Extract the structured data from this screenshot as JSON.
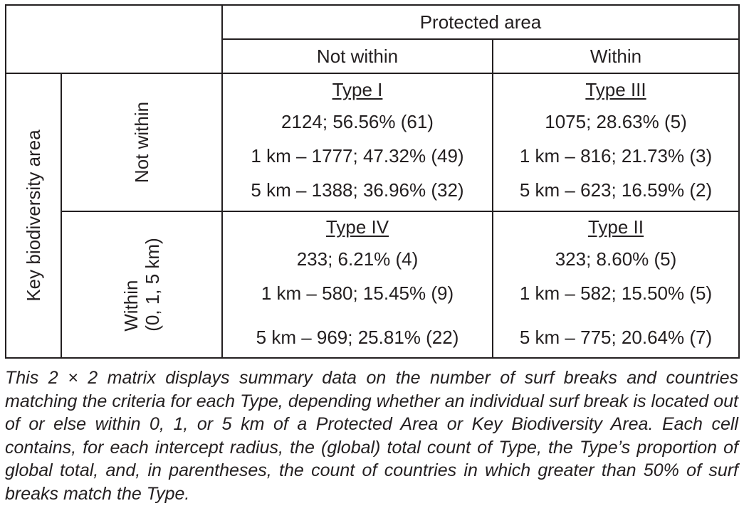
{
  "table": {
    "col_group_header": "Protected area",
    "col_headers": [
      "Not within",
      "Within"
    ],
    "row_group_header": "Key biodiversity area",
    "rows": [
      {
        "row_header": [
          "Not within"
        ],
        "cells": [
          {
            "type": "Type I",
            "lines": [
              "2124; 56.56% (61)",
              "1 km – 1777; 47.32% (49)",
              "5 km – 1388; 36.96% (32)"
            ]
          },
          {
            "type": "Type III",
            "lines": [
              "1075; 28.63% (5)",
              "1 km – 816; 21.73% (3)",
              "5 km – 623; 16.59% (2)"
            ]
          }
        ]
      },
      {
        "row_header": [
          "Within",
          "(0, 1, 5 km)"
        ],
        "cells": [
          {
            "type": "Type IV",
            "lines": [
              "233; 6.21% (4)",
              "1 km – 580; 15.45% (9)",
              "5 km – 969; 25.81% (22)"
            ]
          },
          {
            "type": "Type II",
            "lines": [
              "323; 8.60% (5)",
              "1 km – 582; 15.50% (5)",
              "5 km – 775; 20.64% (7)"
            ]
          }
        ]
      }
    ]
  },
  "caption": "This 2 × 2 matrix displays summary data on the number of surf breaks and countries matching the criteria for each Type, depending whether an individual surf break is located out of or else within 0, 1, or 5 km of a Protected Area or Key Biodiversity Area. Each cell contains, for each intercept radius, the (global) total count of Type, the Type’s proportion of global total, and, in parentheses, the count of countries in which greater than 50% of surf breaks match the Type."
}
